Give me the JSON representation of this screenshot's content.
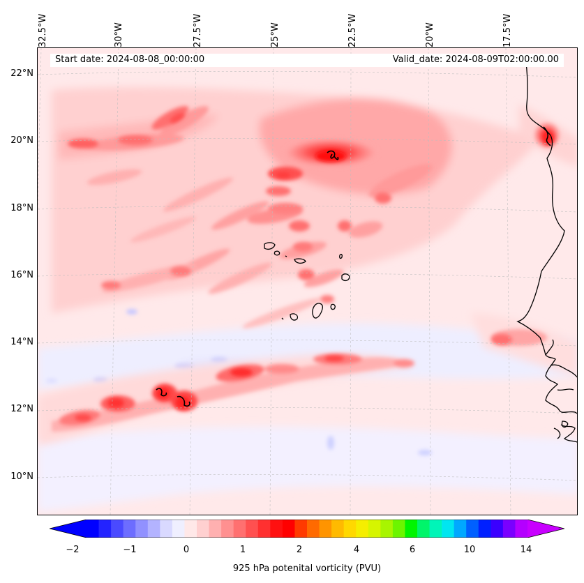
{
  "map": {
    "variable": "925 hPa potential vorticity",
    "projection": "conic",
    "extent_lon": [
      -33.0,
      -13.0
    ],
    "extent_lat": [
      9.0,
      23.0
    ],
    "gridlines": "dashed-gray",
    "info": {
      "start": "Start date: 2024-08-08_00:00:00",
      "valid": "Valid_date: 2024-08-09T02:00:00.00"
    },
    "lon_labels": [
      "32.5°W",
      "30°W",
      "27.5°W",
      "25°W",
      "22.5°W",
      "20°W",
      "17.5°W"
    ],
    "lat_labels": [
      "22°N",
      "20°N",
      "18°N",
      "16°N",
      "14°N",
      "12°N",
      "10°N"
    ],
    "colors": {
      "background_field": "#ffe9ea",
      "coastline": "#000000"
    },
    "features": [
      "west-african-coastline",
      "cape-verde-islands",
      "high-pv-band-near-12n",
      "high-pv-region-near-19n-23w",
      "high-pv-spot-near-20n-coast"
    ]
  },
  "colorbar": {
    "label": "925 hPa potenital vorticity (PVU)",
    "extend": "both",
    "tick_labels": [
      "−2",
      "−1",
      "0",
      "1",
      "2",
      "4",
      "6",
      "10",
      "14"
    ],
    "colors": [
      "#0000ff",
      "#2323ff",
      "#4a4aff",
      "#6d6dff",
      "#9191ff",
      "#b3b3ff",
      "#d9d9ff",
      "#efefff",
      "#ffe8e8",
      "#ffd0d0",
      "#ffb0b0",
      "#ff9090",
      "#ff7070",
      "#ff5050",
      "#ff3030",
      "#ff1010",
      "#ff0000",
      "#ff3a00",
      "#ff6a00",
      "#ff9400",
      "#ffba00",
      "#ffd800",
      "#f5ee00",
      "#d6f500",
      "#a8f500",
      "#6cf500",
      "#00f500",
      "#00f56a",
      "#00f5b8",
      "#00e6f0",
      "#00a8ff",
      "#0060ff",
      "#0020ff",
      "#3a00ff",
      "#7a00ff",
      "#b400ff"
    ],
    "min_color": "#0000ff",
    "max_color": "#c800ff"
  }
}
